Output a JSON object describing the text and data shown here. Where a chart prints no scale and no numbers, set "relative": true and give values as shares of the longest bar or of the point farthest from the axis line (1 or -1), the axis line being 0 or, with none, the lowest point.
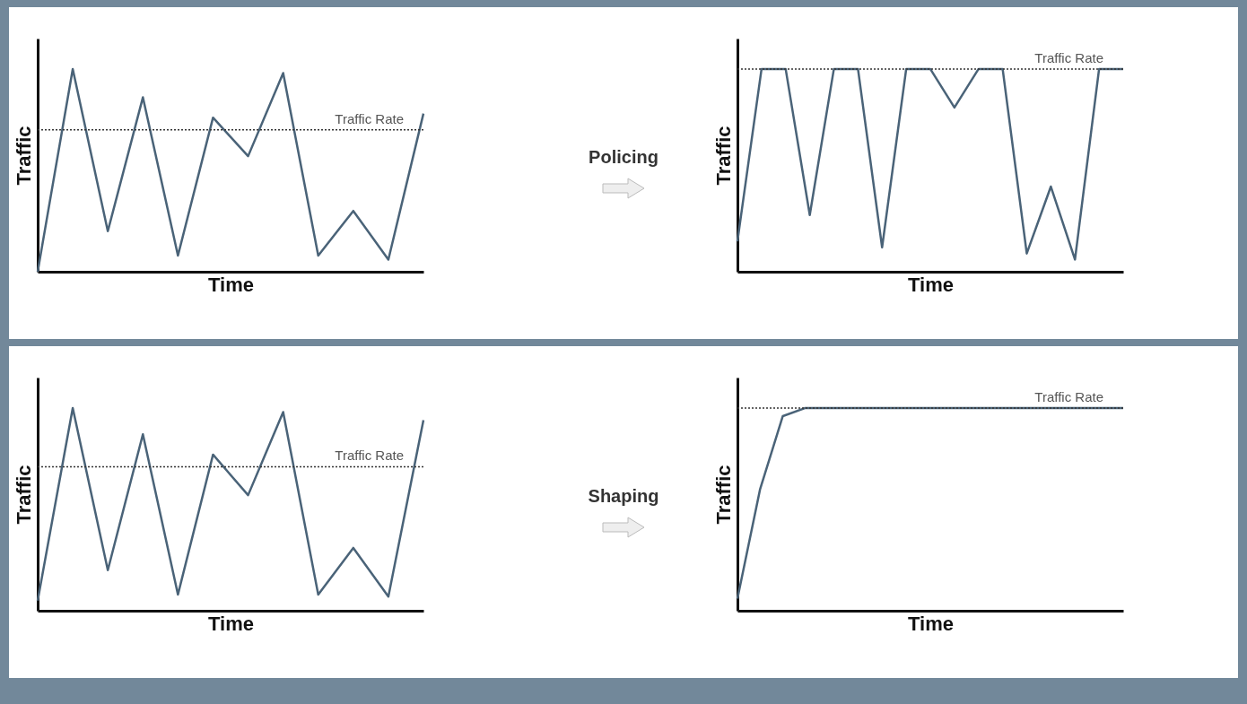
{
  "chart_data": [
    {
      "type": "line",
      "xlabel": "Time",
      "ylabel": "Traffic",
      "relative": true,
      "grid": false,
      "categories": [
        null,
        null,
        null,
        null,
        null,
        null,
        null,
        null,
        null,
        null,
        null,
        null
      ],
      "series": [
        {
          "color": "#4a6378",
          "values": [
            0,
            1,
            0.2,
            0.86,
            0.08,
            0.76,
            0.57,
            0.98,
            0.08,
            0.3,
            0.06,
            0.78
          ]
        }
      ],
      "ref_lines": [
        {
          "axis": "y",
          "value": 0.7,
          "label": "Traffic Rate",
          "line_style": "dotted",
          "color": "#333333"
        }
      ]
    },
    {
      "type": "line",
      "xlabel": "Time",
      "ylabel": "Traffic",
      "relative": true,
      "grid": false,
      "annotations": [
        "Policing"
      ],
      "categories": [
        null,
        null,
        null,
        null,
        null,
        null,
        null,
        null,
        null,
        null,
        null,
        null,
        null,
        null,
        null,
        null,
        null
      ],
      "series": [
        {
          "color": "#4a6378",
          "values": [
            0.15,
            1,
            1,
            0.28,
            1,
            1,
            0.12,
            1,
            1,
            0.81,
            1,
            1,
            0.09,
            0.42,
            0.06,
            1,
            1
          ]
        }
      ],
      "ref_lines": [
        {
          "axis": "y",
          "value": 1,
          "label": "Traffic Rate",
          "line_style": "dotted",
          "color": "#333333"
        }
      ]
    },
    {
      "type": "line",
      "xlabel": "Time",
      "ylabel": "Traffic",
      "relative": true,
      "grid": false,
      "categories": [
        null,
        null,
        null,
        null,
        null,
        null,
        null,
        null,
        null,
        null,
        null,
        null
      ],
      "series": [
        {
          "color": "#4a6378",
          "values": [
            0.05,
            1,
            0.2,
            0.87,
            0.08,
            0.77,
            0.57,
            0.98,
            0.08,
            0.31,
            0.07,
            0.94
          ]
        }
      ],
      "ref_lines": [
        {
          "axis": "y",
          "value": 0.71,
          "label": "Traffic Rate",
          "line_style": "dotted",
          "color": "#333333"
        }
      ]
    },
    {
      "type": "line",
      "xlabel": "Time",
      "ylabel": "Traffic",
      "relative": true,
      "grid": false,
      "annotations": [
        "Shaping"
      ],
      "categories": [
        null,
        null,
        null,
        null,
        null,
        null,
        null,
        null,
        null,
        null,
        null,
        null,
        null,
        null,
        null,
        null,
        null,
        null
      ],
      "series": [
        {
          "color": "#4a6378",
          "values": [
            0.06,
            0.6,
            0.96,
            1,
            1,
            1,
            1,
            1,
            1,
            1,
            1,
            1,
            1,
            1,
            1,
            1,
            1,
            1
          ]
        }
      ],
      "ref_lines": [
        {
          "axis": "y",
          "value": 1,
          "label": "Traffic Rate",
          "line_style": "dotted",
          "color": "#333333"
        }
      ]
    }
  ]
}
